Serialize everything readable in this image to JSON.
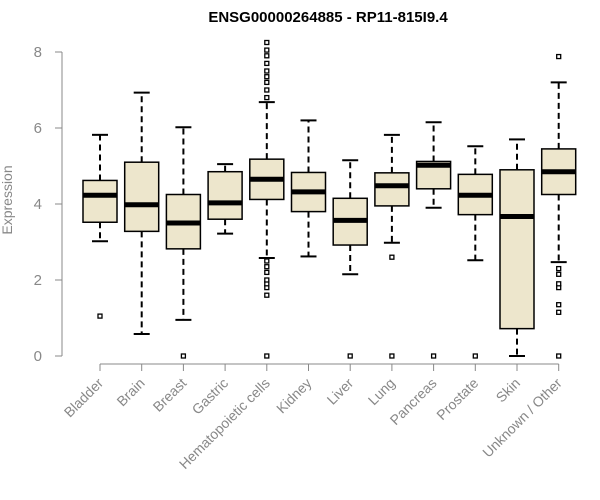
{
  "chart_data": {
    "type": "box",
    "title": "ENSG00000264885 - RP11-815I9.4",
    "xlabel": "",
    "ylabel": "Expression",
    "ylim": [
      0,
      8
    ],
    "yticks": [
      0,
      2,
      4,
      6,
      8
    ],
    "colors": {
      "box_fill": "#ede6cc",
      "box_stroke": "#000000",
      "median": "#000000",
      "axis": "#888888"
    },
    "categories": [
      "Bladder",
      "Brain",
      "Breast",
      "Gastric",
      "Hematopoietic cells",
      "Kidney",
      "Liver",
      "Lung",
      "Pancreas",
      "Prostate",
      "Skin",
      "Unknown / Other"
    ],
    "boxes": [
      {
        "category": "Bladder",
        "whisker_low": 3.02,
        "q1": 3.52,
        "median": 4.23,
        "q3": 4.62,
        "whisker_high": 5.82,
        "outliers": [
          1.05
        ]
      },
      {
        "category": "Brain",
        "whisker_low": 0.58,
        "q1": 3.28,
        "median": 3.98,
        "q3": 5.1,
        "whisker_high": 6.93,
        "outliers": []
      },
      {
        "category": "Breast",
        "whisker_low": 0.95,
        "q1": 2.82,
        "median": 3.5,
        "q3": 4.25,
        "whisker_high": 6.02,
        "outliers": [
          0.0
        ]
      },
      {
        "category": "Gastric",
        "whisker_low": 3.22,
        "q1": 3.6,
        "median": 4.03,
        "q3": 4.85,
        "whisker_high": 5.05,
        "outliers": []
      },
      {
        "category": "Hematopoietic cells",
        "whisker_low": 2.58,
        "q1": 4.12,
        "median": 4.65,
        "q3": 5.18,
        "whisker_high": 6.68,
        "outliers": [
          0.0,
          1.6,
          1.8,
          1.9,
          2.0,
          2.2,
          2.35,
          2.5,
          6.8,
          7.0,
          7.2,
          7.35,
          7.5,
          7.7,
          7.9,
          8.05,
          8.25
        ]
      },
      {
        "category": "Kidney",
        "whisker_low": 2.62,
        "q1": 3.8,
        "median": 4.32,
        "q3": 4.83,
        "whisker_high": 6.2,
        "outliers": []
      },
      {
        "category": "Liver",
        "whisker_low": 2.15,
        "q1": 2.92,
        "median": 3.57,
        "q3": 4.15,
        "whisker_high": 5.15,
        "outliers": [
          0.0
        ]
      },
      {
        "category": "Lung",
        "whisker_low": 2.98,
        "q1": 3.95,
        "median": 4.48,
        "q3": 4.82,
        "whisker_high": 5.82,
        "outliers": [
          0.0,
          2.6
        ]
      },
      {
        "category": "Pancreas",
        "whisker_low": 3.9,
        "q1": 4.4,
        "median": 5.02,
        "q3": 5.12,
        "whisker_high": 6.15,
        "outliers": [
          0.0
        ]
      },
      {
        "category": "Prostate",
        "whisker_low": 2.52,
        "q1": 3.72,
        "median": 4.23,
        "q3": 4.78,
        "whisker_high": 5.52,
        "outliers": [
          0.0
        ]
      },
      {
        "category": "Skin",
        "whisker_low": 0.0,
        "q1": 0.72,
        "median": 3.67,
        "q3": 4.9,
        "whisker_high": 5.7,
        "outliers": []
      },
      {
        "category": "Unknown / Other",
        "whisker_low": 2.47,
        "q1": 4.25,
        "median": 4.85,
        "q3": 5.45,
        "whisker_high": 7.2,
        "outliers": [
          0.0,
          1.15,
          1.35,
          1.8,
          1.9,
          2.15,
          2.3,
          7.88
        ]
      }
    ]
  }
}
